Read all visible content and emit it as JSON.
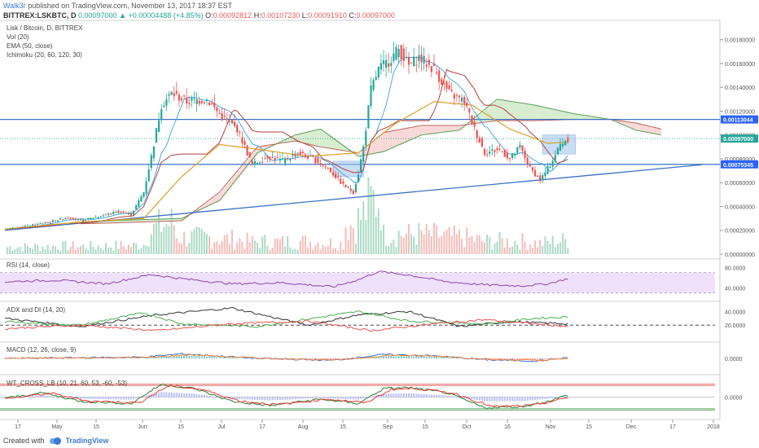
{
  "header": {
    "author": "Walk3r",
    "published": "published on TradingView.com, November 13, 2017 18:37 EST",
    "symbol": "BITTREX:LSKBTC, D",
    "last": "0.00097000",
    "change": "▲ +0.00004488 (+4.85%)",
    "o_label": "O:",
    "o": "0.00092812",
    "h_label": "H:",
    "h": "0.00107230",
    "l_label": "L:",
    "l": "0.00091910",
    "c_label": "C:",
    "c": "0.00097000"
  },
  "legend": {
    "title": "Lisk / Bitcoin, D, BITTREX",
    "vol": "Vol (20)",
    "ema": "EMA (50, close)",
    "ichimoku": "Ichimoku (20, 60, 120, 30)",
    "rsi": "RSI (14, close)",
    "adx": "ADX and DI (14, 20)",
    "macd": "MACD (12, 26, close, 9)",
    "wt": "WT_CROSS_LB (10, 21, 60, 53, -60, -53)"
  },
  "footer": {
    "created": "Created with",
    "brand": "TradingView"
  },
  "colors": {
    "up": "#26a69a",
    "down": "#ef5350",
    "ema": "#d9a02b",
    "kijun": "#b5413b",
    "tenkan": "#4aa8e8",
    "cloud_up": "#cfe9c6",
    "cloud_down": "#f6d1cf",
    "trend": "#3a72c4",
    "rsi_fill": "#efe1fb",
    "rsi_line": "#8e44ad",
    "accent_blue": "#2962ff",
    "box": "#9ec3ea"
  },
  "chart_data": [
    {
      "type": "candlestick",
      "title": "Lisk / Bitcoin, D, BITTREX",
      "ylim": [
        0,
        0.0019
      ],
      "y_ticks": [
        "0.00180000",
        "0.00160000",
        "0.00140000",
        "0.00120000",
        "0.00100000",
        "0.00080000",
        "0.00060000",
        "0.00040000",
        "0.00020000",
        "0.00000000"
      ],
      "price_labels": [
        {
          "value": "0.00113044",
          "y": 0.00113044,
          "color": "#2962ff"
        },
        {
          "value": "0.00097000",
          "y": 0.00097,
          "color": "#26a69a"
        },
        {
          "value": "0.00075345",
          "y": 0.00075345,
          "color": "#2962ff"
        }
      ],
      "x_ticks": [
        "17",
        "May",
        "15",
        "Jun",
        "15",
        "Jul",
        "17",
        "Aug",
        "15",
        "Sep",
        "15",
        "Oct",
        "16",
        "Nov",
        "15",
        "Dec",
        "17",
        "2018"
      ],
      "close_keypoints": [
        [
          0,
          0.00021
        ],
        [
          10,
          0.00024
        ],
        [
          18,
          0.00027
        ],
        [
          25,
          0.00031
        ],
        [
          30,
          0.00028
        ],
        [
          38,
          0.00032
        ],
        [
          45,
          0.00036
        ],
        [
          50,
          0.00033
        ],
        [
          55,
          0.00052
        ],
        [
          58,
          0.00082
        ],
        [
          62,
          0.00125
        ],
        [
          66,
          0.00135
        ],
        [
          72,
          0.00128
        ],
        [
          80,
          0.0013
        ],
        [
          86,
          0.00115
        ],
        [
          92,
          0.00105
        ],
        [
          98,
          0.00075
        ],
        [
          104,
          0.00082
        ],
        [
          110,
          0.00078
        ],
        [
          116,
          0.00085
        ],
        [
          122,
          0.0008
        ],
        [
          128,
          0.00072
        ],
        [
          134,
          0.00058
        ],
        [
          138,
          0.00052
        ],
        [
          140,
          0.00068
        ],
        [
          142,
          0.0009
        ],
        [
          145,
          0.00138
        ],
        [
          148,
          0.00155
        ],
        [
          152,
          0.00162
        ],
        [
          156,
          0.00172
        ],
        [
          160,
          0.00158
        ],
        [
          164,
          0.00165
        ],
        [
          170,
          0.00155
        ],
        [
          176,
          0.00135
        ],
        [
          182,
          0.00128
        ],
        [
          186,
          0.00105
        ],
        [
          190,
          0.00085
        ],
        [
          196,
          0.00088
        ],
        [
          200,
          0.0008
        ],
        [
          204,
          0.0009
        ],
        [
          208,
          0.00072
        ],
        [
          212,
          0.00062
        ],
        [
          216,
          0.00075
        ],
        [
          220,
          0.00092
        ],
        [
          223,
          0.00097
        ]
      ],
      "ema_keypoints": [
        [
          0,
          0.00021
        ],
        [
          30,
          0.00027
        ],
        [
          55,
          0.0003
        ],
        [
          70,
          0.00065
        ],
        [
          85,
          0.00092
        ],
        [
          100,
          0.00088
        ],
        [
          120,
          0.00082
        ],
        [
          140,
          0.00085
        ],
        [
          155,
          0.0011
        ],
        [
          170,
          0.00128
        ],
        [
          185,
          0.00125
        ],
        [
          200,
          0.00105
        ],
        [
          215,
          0.00093
        ],
        [
          223,
          0.00094
        ]
      ],
      "trendline": [
        [
          0,
          0.0002
        ],
        [
          276,
          0.00075
        ]
      ],
      "hlines": [
        0.00113044,
        0.00075345
      ],
      "boxes": [
        {
          "x0": 130,
          "x1": 142,
          "y0": 0.00065,
          "y1": 0.00078
        },
        {
          "x0": 213,
          "x1": 226,
          "y0": 0.00084,
          "y1": 0.001
        }
      ]
    },
    {
      "type": "line",
      "name": "RSI (14, close)",
      "y_ticks": [
        "80.0000",
        "40.0000"
      ],
      "ylim": [
        20,
        90
      ],
      "band": [
        30,
        70
      ],
      "keypoints": [
        [
          0,
          52
        ],
        [
          20,
          55
        ],
        [
          40,
          48
        ],
        [
          58,
          66
        ],
        [
          70,
          58
        ],
        [
          90,
          48
        ],
        [
          110,
          50
        ],
        [
          130,
          42
        ],
        [
          140,
          56
        ],
        [
          148,
          72
        ],
        [
          160,
          65
        ],
        [
          175,
          52
        ],
        [
          190,
          46
        ],
        [
          205,
          44
        ],
        [
          215,
          48
        ],
        [
          223,
          58
        ]
      ]
    },
    {
      "type": "line",
      "name": "ADX and DI (14, 20)",
      "y_ticks": [
        "40.0000",
        "20.0000"
      ],
      "ylim": [
        0,
        50
      ],
      "level": 20,
      "series": [
        {
          "name": "ADX",
          "color": "#333333",
          "keypoints": [
            [
              0,
              30
            ],
            [
              30,
              18
            ],
            [
              60,
              35
            ],
            [
              90,
              45
            ],
            [
              120,
              20
            ],
            [
              140,
              35
            ],
            [
              160,
              40
            ],
            [
              180,
              18
            ],
            [
              200,
              25
            ],
            [
              223,
              22
            ]
          ]
        },
        {
          "name": "+DI",
          "color": "#4caf50",
          "keypoints": [
            [
              0,
              25
            ],
            [
              30,
              20
            ],
            [
              55,
              38
            ],
            [
              70,
              22
            ],
            [
              100,
              18
            ],
            [
              140,
              40
            ],
            [
              160,
              26
            ],
            [
              190,
              22
            ],
            [
              210,
              30
            ],
            [
              223,
              32
            ]
          ]
        },
        {
          "name": "-DI",
          "color": "#ef5350",
          "keypoints": [
            [
              0,
              15
            ],
            [
              30,
              20
            ],
            [
              60,
              12
            ],
            [
              90,
              22
            ],
            [
              120,
              26
            ],
            [
              145,
              12
            ],
            [
              170,
              22
            ],
            [
              190,
              28
            ],
            [
              210,
              22
            ],
            [
              223,
              18
            ]
          ]
        }
      ]
    },
    {
      "type": "line",
      "name": "MACD (12, 26, close, 9)",
      "y_ticks": [
        "0.0000"
      ],
      "ylim": [
        -1,
        1
      ],
      "keypoints": [
        [
          0,
          0
        ],
        [
          55,
          0.1
        ],
        [
          70,
          0.35
        ],
        [
          100,
          0.0
        ],
        [
          130,
          -0.15
        ],
        [
          150,
          0.3
        ],
        [
          170,
          0.2
        ],
        [
          190,
          -0.1
        ],
        [
          210,
          -0.2
        ],
        [
          223,
          0.05
        ]
      ]
    },
    {
      "type": "line",
      "name": "WT_CROSS_LB (10, 21, 60, 53, -60, -53)",
      "y_ticks": [
        "0.0000"
      ],
      "ylim": [
        -90,
        90
      ],
      "levels": [
        60,
        53,
        -53,
        -60
      ],
      "keypoints": [
        [
          0,
          -5
        ],
        [
          15,
          20
        ],
        [
          30,
          -20
        ],
        [
          50,
          -30
        ],
        [
          62,
          60
        ],
        [
          75,
          40
        ],
        [
          90,
          -20
        ],
        [
          105,
          -40
        ],
        [
          125,
          -10
        ],
        [
          140,
          -30
        ],
        [
          150,
          40
        ],
        [
          160,
          45
        ],
        [
          175,
          20
        ],
        [
          190,
          -50
        ],
        [
          205,
          -45
        ],
        [
          215,
          -20
        ],
        [
          223,
          10
        ]
      ]
    }
  ]
}
